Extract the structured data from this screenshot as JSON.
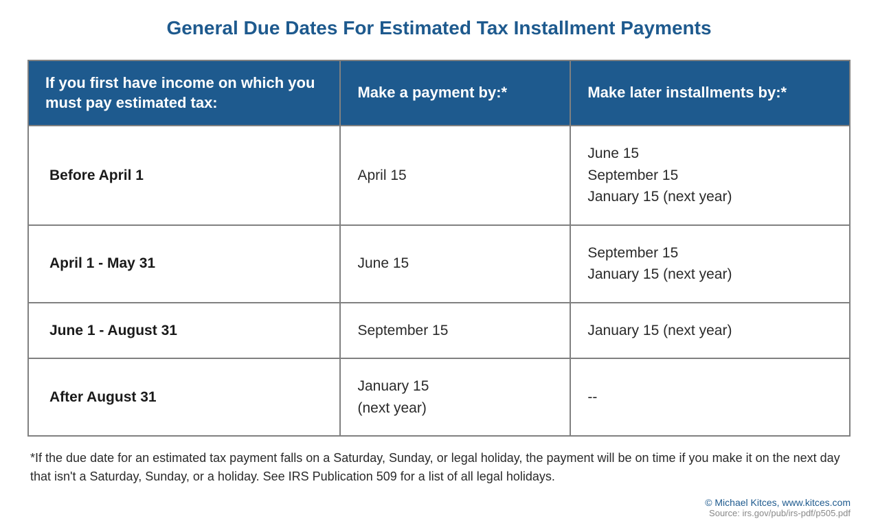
{
  "title": "General Due Dates For Estimated Tax Installment Payments",
  "table": {
    "headers": {
      "col1": "If you first have income on which you must pay estimated tax:",
      "col2": "Make a payment by:*",
      "col3": "Make later installments by:*"
    },
    "rows": [
      {
        "period": "Before April 1",
        "payment_by": "April 15",
        "later": "June 15\nSeptember 15\nJanuary 15 (next year)"
      },
      {
        "period": "April 1 - May 31",
        "payment_by": "June 15",
        "later": "September 15\nJanuary 15 (next year)"
      },
      {
        "period": "June 1 - August 31",
        "payment_by": "September 15",
        "later": "January 15 (next year)"
      },
      {
        "period": "After August 31",
        "payment_by": "January 15\n(next year)",
        "later": "--"
      }
    ]
  },
  "footnote": "*If the due date for an estimated tax payment falls on a Saturday, Sunday, or legal holiday, the payment will be on time if you make it on the next day that isn't a Saturday, Sunday, or a holiday. See IRS Publication 509 for a list of all legal holidays.",
  "attribution": "© Michael Kitces, www.kitces.com",
  "source": "Source: irs.gov/pub/irs-pdf/p505.pdf",
  "colors": {
    "header_bg": "#1e5a8e",
    "header_text": "#ffffff",
    "title_color": "#1e5a8e",
    "border_color": "#808080",
    "body_text": "#2a2a2a"
  }
}
